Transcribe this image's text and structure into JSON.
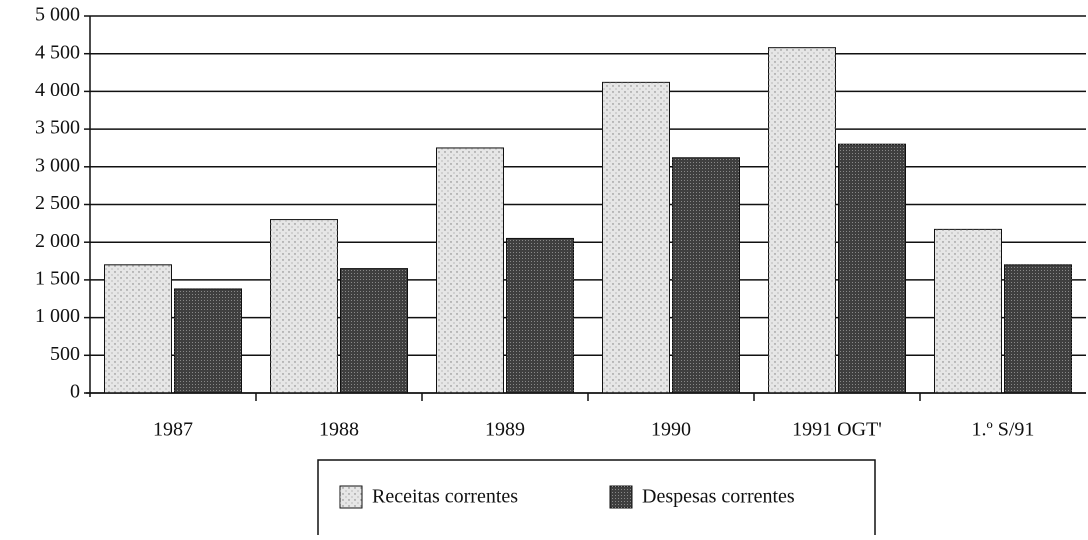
{
  "chart_data": {
    "type": "bar",
    "categories": [
      "1987",
      "1988",
      "1989",
      "1990",
      "1991 OGT'",
      "1.º S/91"
    ],
    "series": [
      {
        "name": "Receitas correntes",
        "color": "#e6e6e6",
        "values": [
          1700,
          2300,
          3250,
          4120,
          4580,
          2170
        ]
      },
      {
        "name": "Despesas correntes",
        "color": "#3f3f3f",
        "values": [
          1380,
          1650,
          2050,
          3120,
          3300,
          1700
        ]
      }
    ],
    "ylim": [
      0,
      5000
    ],
    "yticks": [
      0,
      500,
      {
        "value": 1000,
        "label": "1 000"
      },
      {
        "value": 1500,
        "label": "1 500"
      },
      {
        "value": 2000,
        "label": "2 000"
      },
      {
        "value": 2500,
        "label": "2 500"
      },
      {
        "value": 3000,
        "label": "3 000"
      },
      {
        "value": 3500,
        "label": "3 500"
      },
      {
        "value": 4000,
        "label": "4 000"
      },
      {
        "value": 4500,
        "label": "4 500"
      },
      {
        "value": 5000,
        "label": "5 000"
      }
    ],
    "grid": true,
    "legend": "bottom"
  }
}
